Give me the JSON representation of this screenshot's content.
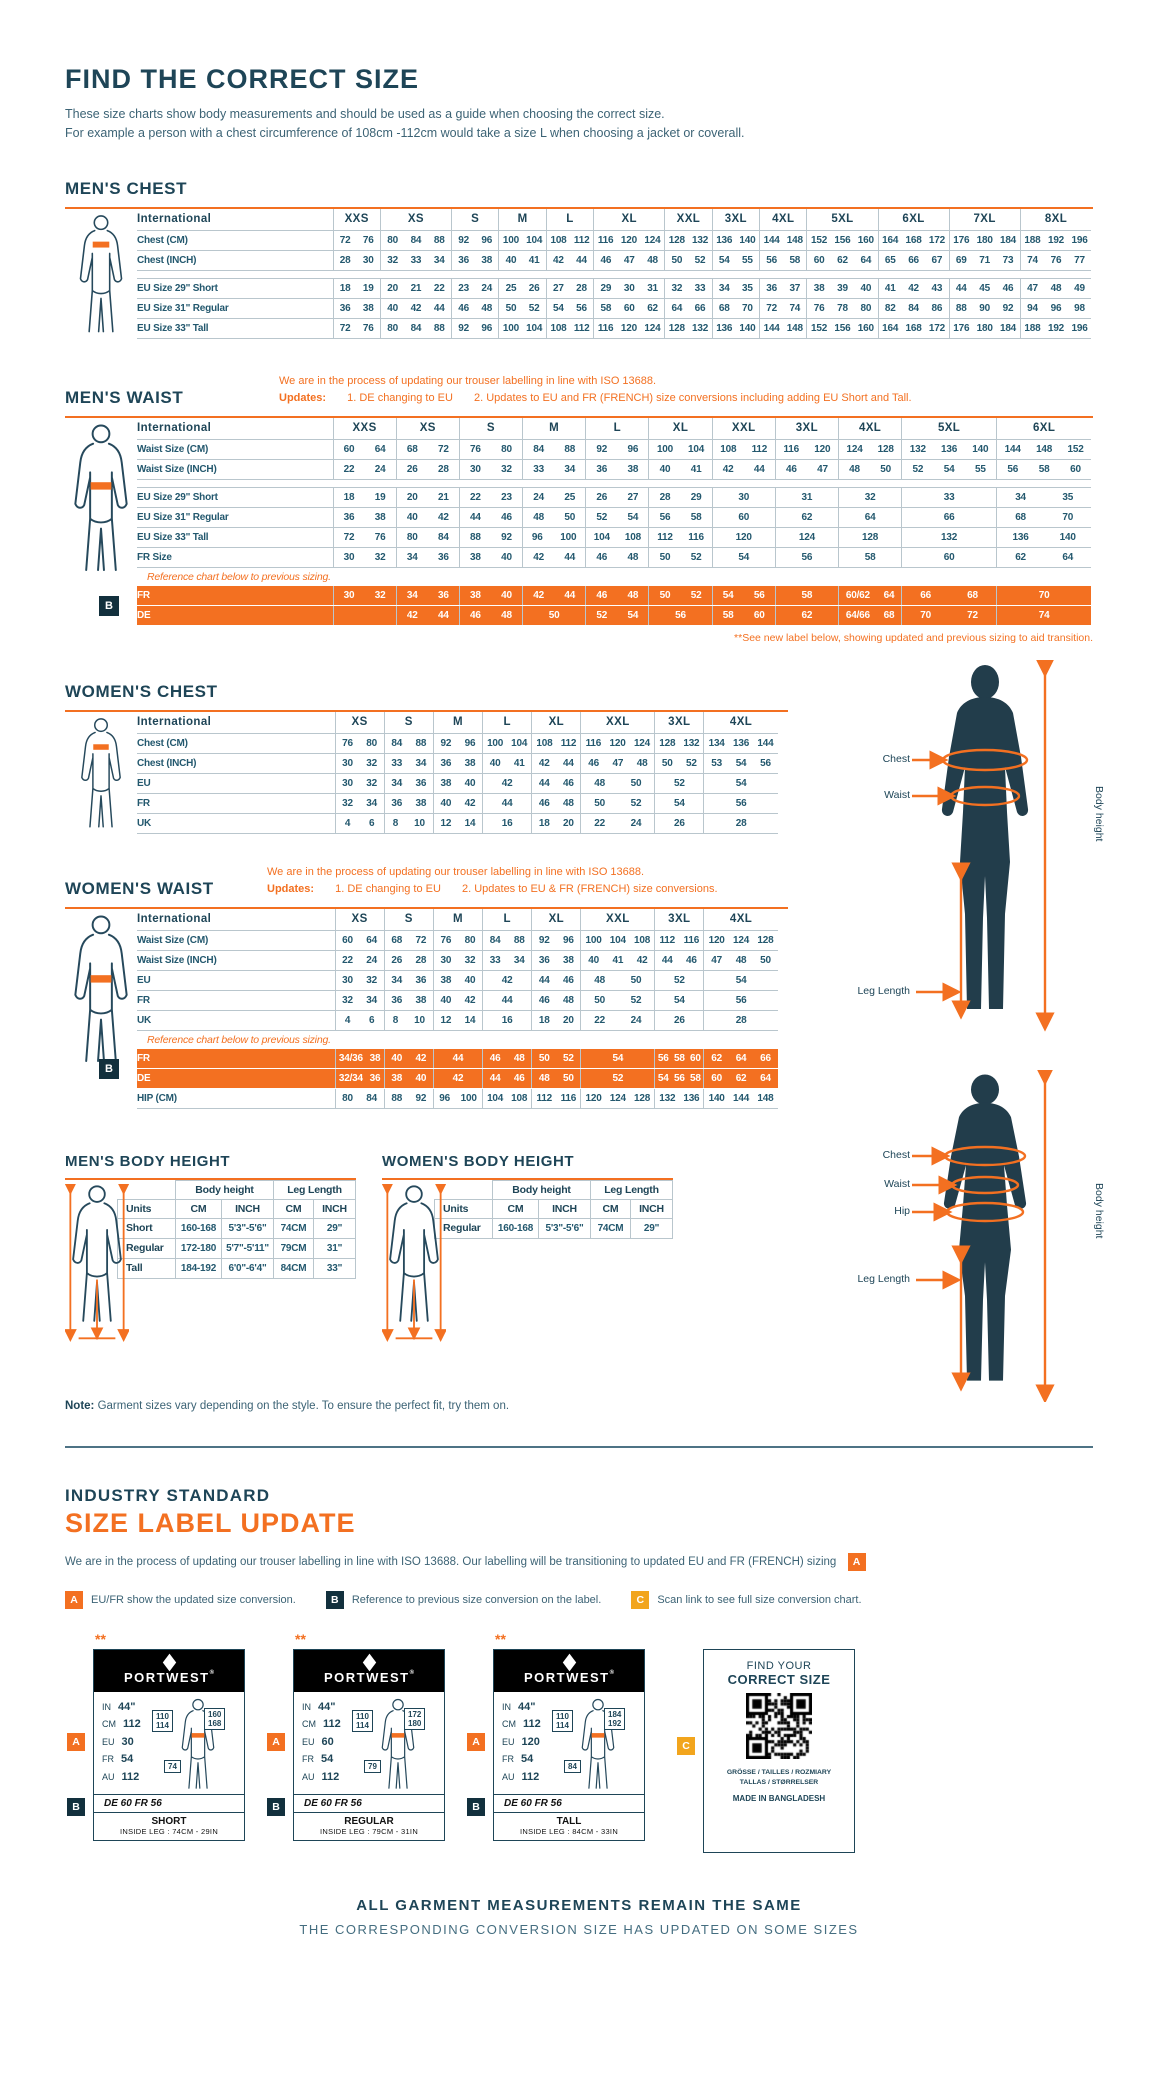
{
  "page": {
    "title": "FIND THE CORRECT SIZE",
    "intro1": "These size charts show body measurements and should be used as a guide when choosing the correct size.",
    "intro2": "For example a person with a chest circumference of 108cm -112cm would take a size L when choosing a jacket or coverall."
  },
  "colors": {
    "accent_orange": "#f37021",
    "navy": "#1e4557",
    "amber": "#f2a51d"
  },
  "mens_chest": {
    "heading": "MEN'S CHEST",
    "col_units": [
      2,
      3,
      2,
      2,
      2,
      3,
      2,
      2,
      2,
      3,
      3,
      3,
      3
    ],
    "rows": [
      {
        "type": "header",
        "label": "International",
        "cells": [
          "XXS",
          "XS",
          "S",
          "M",
          "L",
          "XL",
          "XXL",
          "3XL",
          "4XL",
          "5XL",
          "6XL",
          "7XL",
          "8XL"
        ]
      },
      {
        "type": "data",
        "label": "Chest (CM)",
        "cells": [
          "72 76",
          "80 84 88",
          "92 96",
          "100 104",
          "108 112",
          "116 120 124",
          "128 132",
          "136 140",
          "144 148",
          "152 156 160",
          "164 168 172",
          "176 180 184",
          "188 192 196"
        ]
      },
      {
        "type": "data",
        "label": "Chest (INCH)",
        "cells": [
          "28 30",
          "32 33 34",
          "36 38",
          "40 41",
          "42 44",
          "46 47 48",
          "50 52",
          "54 55",
          "56 58",
          "60 62 64",
          "65 66 67",
          "69 71 73",
          "74 76 77"
        ]
      },
      {
        "type": "spacer"
      },
      {
        "type": "data",
        "label": "EU Size 29\" Short",
        "cells": [
          "18 19",
          "20 21 22",
          "23 24",
          "25 26",
          "27 28",
          "29 30 31",
          "32 33",
          "34 35",
          "36 37",
          "38 39 40",
          "41 42 43",
          "44 45 46",
          "47 48 49"
        ]
      },
      {
        "type": "data",
        "label": "EU Size 31\" Regular",
        "cells": [
          "36 38",
          "40 42 44",
          "46 48",
          "50 52",
          "54 56",
          "58 60 62",
          "64 66",
          "68 70",
          "72 74",
          "76 78 80",
          "82 84 86",
          "88 90 92",
          "94 96 98"
        ]
      },
      {
        "type": "data",
        "label": "EU Size 33\" Tall",
        "cells": [
          "72 76",
          "80 84 88",
          "92 96",
          "100 104",
          "108 112",
          "116 120 124",
          "128 132",
          "136 140",
          "144 148",
          "152 156 160",
          "164 168 172",
          "176 180 184",
          "188 192 196"
        ]
      }
    ]
  },
  "mens_waist": {
    "heading": "MEN'S WAIST",
    "notice1": "We are in the process of updating our trouser labelling in line with ISO 13688.",
    "updates_label": "Updates:",
    "update1": "1. DE changing to EU",
    "update2": "2. Updates to EU and FR (FRENCH) size conversions including adding EU Short and Tall.",
    "badge": "B",
    "footnote": "**See new label below, showing updated and previous sizing to aid transition.",
    "col_units": [
      2,
      2,
      2,
      2,
      2,
      2,
      2,
      2,
      2,
      3,
      3
    ],
    "rows": [
      {
        "type": "header",
        "label": "International",
        "cells": [
          "XXS",
          "XS",
          "S",
          "M",
          "L",
          "XL",
          "XXL",
          "3XL",
          "4XL",
          "5XL",
          "6XL"
        ]
      },
      {
        "type": "data",
        "label": "Waist Size (CM)",
        "cells": [
          "60 64",
          "68 72",
          "76 80",
          "84 88",
          "92 96",
          "100 104",
          "108 112",
          "116 120",
          "124 128",
          "132 136 140",
          "144 148 152"
        ]
      },
      {
        "type": "data",
        "label": "Waist Size (INCH)",
        "cells": [
          "22 24",
          "26 28",
          "30 32",
          "33 34",
          "36 38",
          "40 41",
          "42 44",
          "46 47",
          "48 50",
          "52 54 55",
          "56 58 60"
        ]
      },
      {
        "type": "spacer"
      },
      {
        "type": "data",
        "label": "EU Size 29\" Short",
        "cells": [
          "18 19",
          "20 21",
          "22 23",
          "24 25",
          "26 27",
          "28 29",
          "30",
          "31",
          "32",
          "33",
          "34 35"
        ]
      },
      {
        "type": "data",
        "label": "EU Size 31\" Regular",
        "cells": [
          "36 38",
          "40 42",
          "44 46",
          "48 50",
          "52 54",
          "56 58",
          "60",
          "62",
          "64",
          "66",
          "68 70"
        ]
      },
      {
        "type": "data",
        "label": "EU Size 33\" Tall",
        "cells": [
          "72 76",
          "80 84",
          "88 92",
          "96 100",
          "104 108",
          "112 116",
          "120",
          "124",
          "128",
          "132",
          "136 140"
        ]
      },
      {
        "type": "data",
        "label": "FR Size",
        "cells": [
          "30 32",
          "34 36",
          "38 40",
          "42 44",
          "46 48",
          "50 52",
          "54",
          "56",
          "58",
          "60",
          "62 64"
        ]
      },
      {
        "type": "note",
        "text": "Reference chart below to previous sizing."
      },
      {
        "type": "legacy",
        "label": "FR",
        "cells": [
          "30 32",
          "34 36",
          "38 40",
          "42 44",
          "46 48",
          "50 52",
          "54 56",
          "58",
          "60/62 64",
          "66 68",
          "70"
        ]
      },
      {
        "type": "legacy",
        "label": "DE",
        "cells": [
          "",
          "42 44",
          "46 48",
          "50",
          "52 54",
          "56",
          "58 60",
          "62",
          "64/66 68",
          "70 72",
          "74"
        ]
      }
    ]
  },
  "womens_chest": {
    "heading": "WOMEN'S CHEST",
    "col_units": [
      2,
      2,
      2,
      2,
      2,
      3,
      2,
      3
    ],
    "rows": [
      {
        "type": "header",
        "label": "International",
        "cells": [
          "XS",
          "S",
          "M",
          "L",
          "XL",
          "XXL",
          "3XL",
          "4XL"
        ]
      },
      {
        "type": "data",
        "label": "Chest (CM)",
        "cells": [
          "76 80",
          "84 88",
          "92 96",
          "100 104",
          "108 112",
          "116 120 124",
          "128 132",
          "134 136 144"
        ]
      },
      {
        "type": "data",
        "label": "Chest (INCH)",
        "cells": [
          "30 32",
          "33 34",
          "36 38",
          "40 41",
          "42 44",
          "46 47 48",
          "50 52",
          "53 54 56"
        ]
      },
      {
        "type": "data",
        "label": "EU",
        "cells": [
          "30 32",
          "34 36",
          "38 40",
          "42",
          "44 46",
          "48 50",
          "52",
          "54"
        ]
      },
      {
        "type": "data",
        "label": "FR",
        "cells": [
          "32 34",
          "36 38",
          "40 42",
          "44",
          "46 48",
          "50 52",
          "54",
          "56"
        ]
      },
      {
        "type": "data",
        "label": "UK",
        "cells": [
          "4 6",
          "8 10",
          "12 14",
          "16",
          "18 20",
          "22 24",
          "26",
          "28"
        ]
      }
    ]
  },
  "womens_waist": {
    "heading": "WOMEN'S WAIST",
    "notice1": "We are in the process of updating our trouser labelling in line with ISO 13688.",
    "updates_label": "Updates:",
    "update1": "1. DE changing to EU",
    "update2": "2. Updates to EU & FR (FRENCH) size conversions.",
    "badge": "B",
    "col_units": [
      2,
      2,
      2,
      2,
      2,
      3,
      2,
      3
    ],
    "rows": [
      {
        "type": "header",
        "label": "International",
        "cells": [
          "XS",
          "S",
          "M",
          "L",
          "XL",
          "XXL",
          "3XL",
          "4XL"
        ]
      },
      {
        "type": "data",
        "label": "Waist Size (CM)",
        "cells": [
          "60 64",
          "68 72",
          "76 80",
          "84 88",
          "92 96",
          "100 104 108",
          "112 116",
          "120 124 128"
        ]
      },
      {
        "type": "data",
        "label": "Waist Size (INCH)",
        "cells": [
          "22 24",
          "26 28",
          "30 32",
          "33 34",
          "36 38",
          "40 41 42",
          "44 46",
          "47 48 50"
        ]
      },
      {
        "type": "data",
        "label": "EU",
        "cells": [
          "30 32",
          "34 36",
          "38 40",
          "42",
          "44 46",
          "48 50",
          "52",
          "54"
        ]
      },
      {
        "type": "data",
        "label": "FR",
        "cells": [
          "32 34",
          "36 38",
          "40 42",
          "44",
          "46 48",
          "50 52",
          "54",
          "56"
        ]
      },
      {
        "type": "data",
        "label": "UK",
        "cells": [
          "4 6",
          "8 10",
          "12 14",
          "16",
          "18 20",
          "22 24",
          "26",
          "28"
        ]
      },
      {
        "type": "note",
        "text": "Reference chart below to previous sizing."
      },
      {
        "type": "legacy",
        "label": "FR",
        "cells": [
          "34/36 38",
          "40 42",
          "44",
          "46 48",
          "50 52",
          "54",
          "56 58 60",
          "62 64 66"
        ]
      },
      {
        "type": "legacy",
        "label": "DE",
        "cells": [
          "32/34 36",
          "38 40",
          "42",
          "44 46",
          "48 50",
          "52",
          "54 56 58",
          "60 62 64"
        ]
      },
      {
        "type": "data",
        "label": "HIP (CM)",
        "cells": [
          "80 84",
          "88 92",
          "96 100",
          "104 108",
          "112 116",
          "120 124 128",
          "132 136",
          "140 144 148"
        ]
      }
    ]
  },
  "mens_body_height": {
    "heading": "MEN'S BODY HEIGHT",
    "group1": "Body height",
    "group2": "Leg Length",
    "col_headers": [
      "Units",
      "CM",
      "INCH",
      "CM",
      "INCH"
    ],
    "rows": [
      {
        "label": "Short",
        "cells": [
          "160-168",
          "5'3\"-5'6\"",
          "74CM",
          "29\""
        ]
      },
      {
        "label": "Regular",
        "cells": [
          "172-180",
          "5'7\"-5'11\"",
          "79CM",
          "31\""
        ]
      },
      {
        "label": "Tall",
        "cells": [
          "184-192",
          "6'0\"-6'4\"",
          "84CM",
          "33\""
        ]
      }
    ]
  },
  "womens_body_height": {
    "heading": "WOMEN'S BODY HEIGHT",
    "group1": "Body height",
    "group2": "Leg Length",
    "col_headers": [
      "Units",
      "CM",
      "INCH",
      "CM",
      "INCH"
    ],
    "rows": [
      {
        "label": "Regular",
        "cells": [
          "160-168",
          "5'3\"-5'6\"",
          "74CM",
          "29\""
        ]
      }
    ]
  },
  "figures": {
    "man": {
      "labels": [
        "Chest",
        "Waist",
        "Leg Length"
      ],
      "vertical": "Body height"
    },
    "woman": {
      "labels": [
        "Chest",
        "Waist",
        "Hip",
        "Leg Length"
      ],
      "vertical": "Body height"
    }
  },
  "note": {
    "bold": "Note:",
    "text": " Garment sizes vary depending on the style. To ensure the perfect fit, try them on."
  },
  "label_update": {
    "heading1": "INDUSTRY STANDARD",
    "heading2": "SIZE LABEL UPDATE",
    "paragraph": "We are in the process of updating our trouser labelling in line with ISO 13688. Our labelling will be transitioning to updated EU and FR (FRENCH) sizing",
    "paragraph_badge": "A",
    "legend": [
      {
        "badge": "A",
        "style": "bg-a",
        "text": "EU/FR show the updated size conversion."
      },
      {
        "badge": "B",
        "style": "bg-b",
        "text": "Reference to previous size conversion on the label."
      },
      {
        "badge": "C",
        "style": "bg-c",
        "text": "Scan link to see full size conversion chart."
      }
    ],
    "cards": [
      {
        "stars": "**",
        "brand": "PORTWEST",
        "reg": "®",
        "badge_a": "A",
        "badge_b": "B",
        "rows": [
          {
            "l": "IN",
            "v": "44\""
          },
          {
            "l": "CM",
            "v": "112"
          },
          {
            "l": "EU",
            "v": "30"
          },
          {
            "l": "FR",
            "v": "54"
          },
          {
            "l": "AU",
            "v": "112"
          }
        ],
        "waist_box": "110 114",
        "height_box": "160 168",
        "leg_box": "74",
        "legacy": "DE 60 FR 56",
        "fit": "SHORT",
        "inside_leg": "INSIDE LEG : 74CM - 29IN"
      },
      {
        "stars": "**",
        "brand": "PORTWEST",
        "reg": "®",
        "badge_a": "A",
        "badge_b": "B",
        "rows": [
          {
            "l": "IN",
            "v": "44\""
          },
          {
            "l": "CM",
            "v": "112"
          },
          {
            "l": "EU",
            "v": "60"
          },
          {
            "l": "FR",
            "v": "54"
          },
          {
            "l": "AU",
            "v": "112"
          }
        ],
        "waist_box": "110 114",
        "height_box": "172 180",
        "leg_box": "79",
        "legacy": "DE 60 FR 56",
        "fit": "REGULAR",
        "inside_leg": "INSIDE LEG : 79CM - 31IN"
      },
      {
        "stars": "**",
        "brand": "PORTWEST",
        "reg": "®",
        "badge_a": "A",
        "badge_b": "B",
        "rows": [
          {
            "l": "IN",
            "v": "44\""
          },
          {
            "l": "CM",
            "v": "112"
          },
          {
            "l": "EU",
            "v": "120"
          },
          {
            "l": "FR",
            "v": "54"
          },
          {
            "l": "AU",
            "v": "112"
          }
        ],
        "waist_box": "110 114",
        "height_box": "184 192",
        "leg_box": "84",
        "legacy": "DE 60 FR 56",
        "fit": "TALL",
        "inside_leg": "INSIDE LEG : 84CM - 33IN"
      }
    ],
    "qr_card": {
      "badge_c": "C",
      "line1": "FIND YOUR",
      "line2": "CORRECT SIZE",
      "langs1": "GRÖSSE / TAILLES / ROZMIARY",
      "langs2": "TALLAS / STØRRELSER",
      "made": "MADE IN BANGLADESH"
    },
    "footer1": "ALL GARMENT MEASUREMENTS REMAIN THE SAME",
    "footer2": "THE CORRESPONDING CONVERSION SIZE HAS UPDATED ON SOME SIZES"
  }
}
